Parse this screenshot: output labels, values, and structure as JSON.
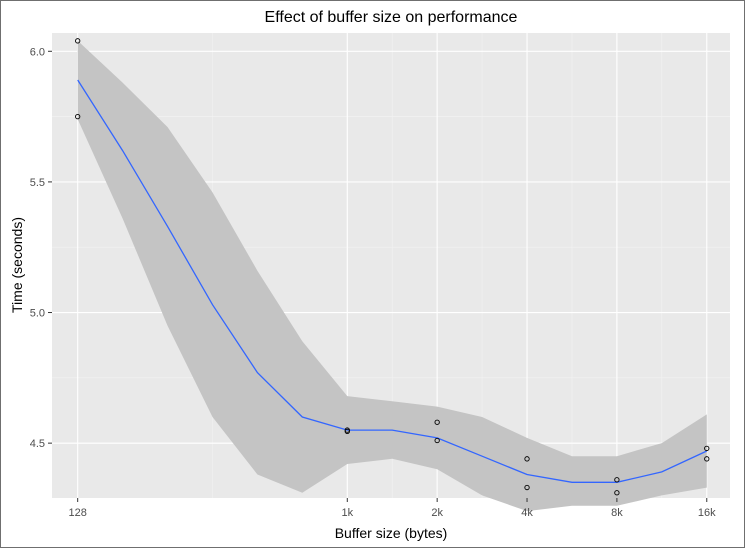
{
  "chart_data": {
    "type": "scatter",
    "title": "Effect of buffer size on performance",
    "xlabel": "Buffer size (bytes)",
    "ylabel": "Time (seconds)",
    "x_scale": "log2",
    "xlim": [
      105,
      19600
    ],
    "ylim": [
      4.29,
      6.07
    ],
    "x_ticks": [
      {
        "value": 128,
        "label": "128"
      },
      {
        "value": 1024,
        "label": "1k"
      },
      {
        "value": 2048,
        "label": "2k"
      },
      {
        "value": 4096,
        "label": "4k"
      },
      {
        "value": 8192,
        "label": "8k"
      },
      {
        "value": 16384,
        "label": "16k"
      }
    ],
    "y_ticks": [
      {
        "value": 4.5,
        "label": "4.5"
      },
      {
        "value": 5.0,
        "label": "5.0"
      },
      {
        "value": 5.5,
        "label": "5.5"
      },
      {
        "value": 6.0,
        "label": "6.0"
      }
    ],
    "grid": true,
    "points": [
      {
        "x": 128,
        "y": 6.04
      },
      {
        "x": 128,
        "y": 5.75
      },
      {
        "x": 1024,
        "y": 4.55
      },
      {
        "x": 1024,
        "y": 4.545
      },
      {
        "x": 2048,
        "y": 4.58
      },
      {
        "x": 2048,
        "y": 4.51
      },
      {
        "x": 4096,
        "y": 4.44
      },
      {
        "x": 4096,
        "y": 4.33
      },
      {
        "x": 8192,
        "y": 4.36
      },
      {
        "x": 8192,
        "y": 4.31
      },
      {
        "x": 16384,
        "y": 4.48
      },
      {
        "x": 16384,
        "y": 4.44
      }
    ],
    "smooth": {
      "x": [
        128,
        181,
        256,
        362,
        512,
        724,
        1024,
        1448,
        2048,
        2896,
        4096,
        5793,
        8192,
        11585,
        16384
      ],
      "y": [
        5.89,
        5.62,
        5.33,
        5.03,
        4.77,
        4.6,
        4.55,
        4.55,
        4.52,
        4.45,
        4.38,
        4.35,
        4.35,
        4.39,
        4.47
      ],
      "lower": [
        5.74,
        5.36,
        4.95,
        4.6,
        4.38,
        4.31,
        4.42,
        4.44,
        4.4,
        4.3,
        4.24,
        4.26,
        4.26,
        4.3,
        4.33
      ],
      "upper": [
        6.04,
        5.88,
        5.71,
        5.46,
        5.16,
        4.89,
        4.68,
        4.66,
        4.64,
        4.6,
        4.52,
        4.45,
        4.45,
        4.5,
        4.61
      ]
    },
    "colors": {
      "panel": "#e9e9e9",
      "grid_major": "#ffffff",
      "grid_minor": "#f3f3f3",
      "ribbon": "#c4c4c4",
      "line": "#3366ff",
      "point": "#000000"
    }
  }
}
